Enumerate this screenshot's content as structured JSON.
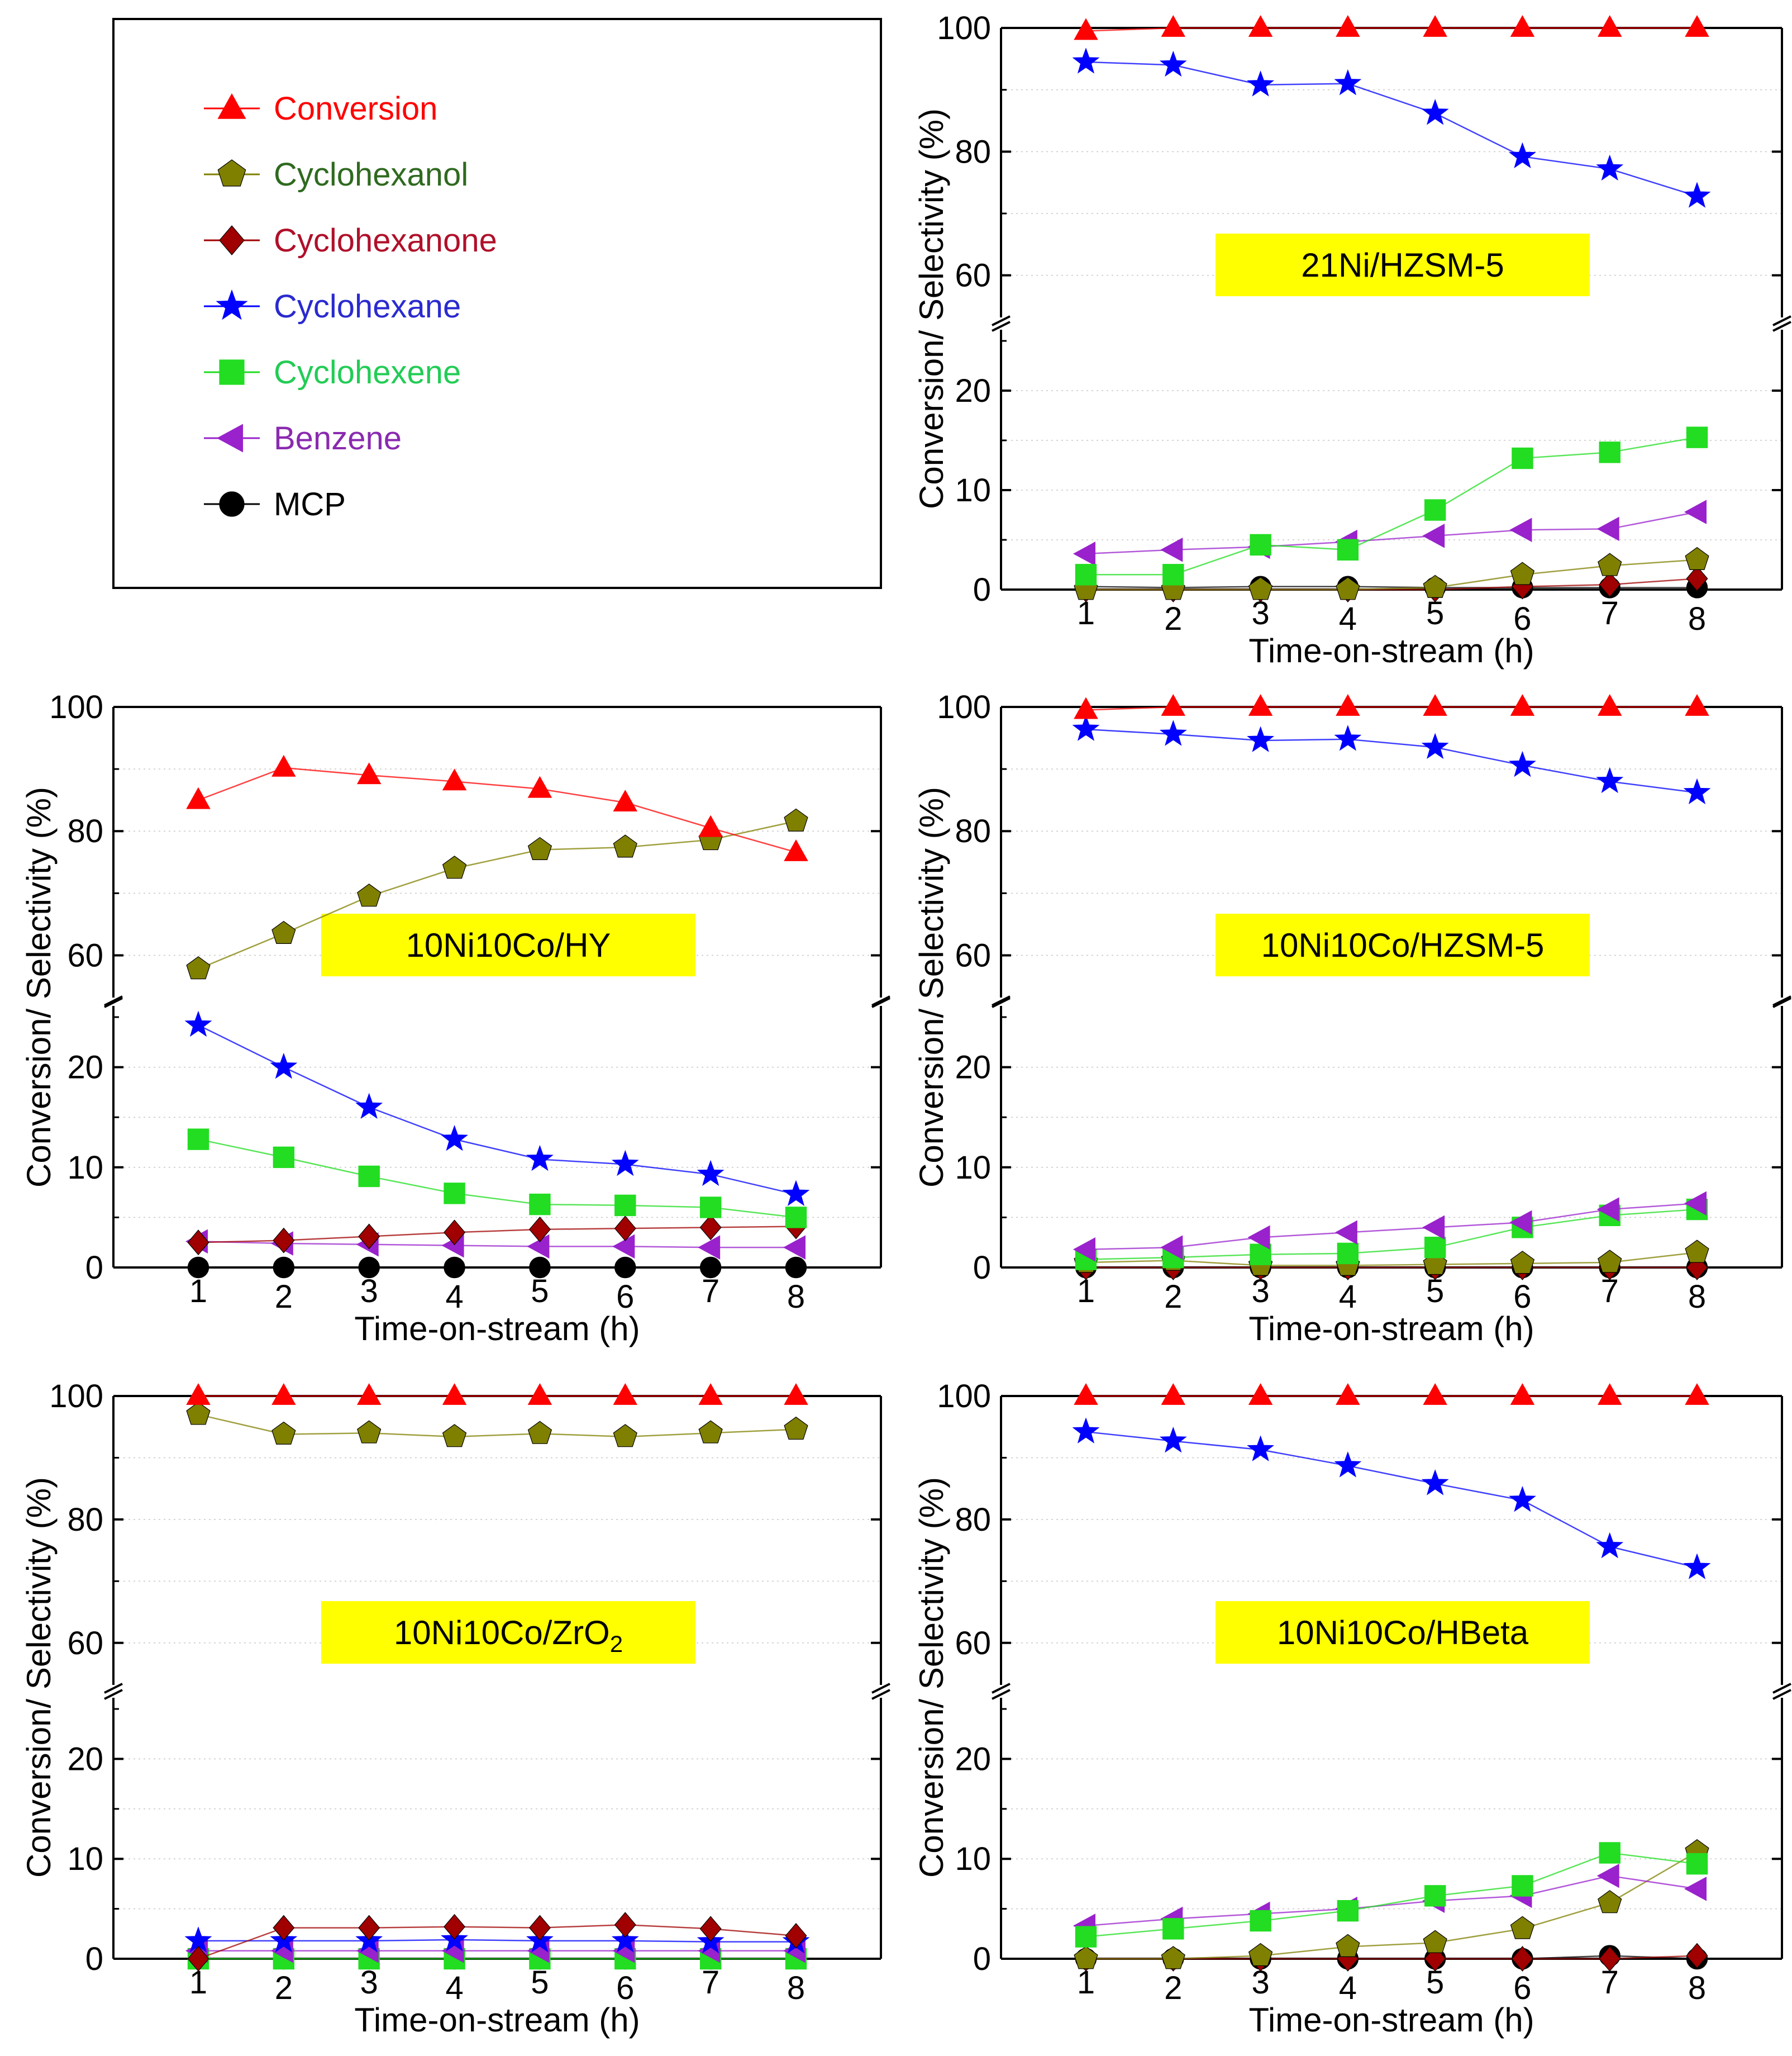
{
  "figure": {
    "x_label": "Time-on-stream (h)",
    "y_label": "Conversion/ Selectivity (%)"
  },
  "colors": {
    "conversion": "#ff0000",
    "cyclohexanol": "#808000",
    "cyclohexanone": "#a00000",
    "cyclohexane": "#0000ff",
    "cyclohexene": "#22dd22",
    "benzene": "#9922cc",
    "mcp": "#000000",
    "highlight": "#ffff00"
  },
  "legend": {
    "items": [
      {
        "key": "conversion",
        "label": "Conversion",
        "marker": "triangle-up",
        "text_color": "#ff0000"
      },
      {
        "key": "cyclohexanol",
        "label": "Cyclohexanol",
        "marker": "pentagon",
        "text_color": "#2f6a1f"
      },
      {
        "key": "cyclohexanone",
        "label": "Cyclohexanone",
        "marker": "diamond",
        "text_color": "#b0102a"
      },
      {
        "key": "cyclohexane",
        "label": "Cyclohexane",
        "marker": "star",
        "text_color": "#2a2ad0"
      },
      {
        "key": "cyclohexene",
        "label": "Cyclohexene",
        "marker": "square",
        "text_color": "#22cc55"
      },
      {
        "key": "benzene",
        "label": "Benzene",
        "marker": "triangle-left",
        "text_color": "#8a2ab0"
      },
      {
        "key": "mcp",
        "label": "MCP",
        "marker": "circle",
        "text_color": "#000000"
      }
    ]
  },
  "chart_data": [
    {
      "type": "line",
      "title": "21Ni/HZSM-5",
      "xlabel": "Time-on-stream (h)",
      "ylabel": "Conversion/ Selectivity (%)",
      "x": [
        1,
        2,
        3,
        4,
        5,
        6,
        7,
        8
      ],
      "ylim": [
        0,
        25
      ],
      "ylim_upper": [
        55,
        100
      ],
      "yticks_lower": [
        0,
        10,
        20
      ],
      "yticks_upper": [
        60,
        80,
        100
      ],
      "show_x_axis": true,
      "series": [
        {
          "key": "conversion",
          "name": "Conversion",
          "values": [
            99.5,
            100,
            100,
            100,
            100,
            100,
            100,
            100
          ]
        },
        {
          "key": "cyclohexane",
          "name": "Cyclohexane",
          "values": [
            94.5,
            94,
            90.8,
            91,
            86.2,
            79.2,
            77.2,
            72.8
          ]
        },
        {
          "key": "cyclohexene",
          "name": "Cyclohexene",
          "values": [
            1.5,
            1.5,
            4.5,
            4.0,
            8.0,
            13.2,
            13.8,
            15.3
          ]
        },
        {
          "key": "benzene",
          "name": "Benzene",
          "values": [
            3.6,
            4.0,
            4.3,
            4.8,
            5.4,
            6.0,
            6.1,
            7.8
          ]
        },
        {
          "key": "cyclohexanol",
          "name": "Cyclohexanol",
          "values": [
            0,
            0,
            0,
            0,
            0.2,
            1.5,
            2.4,
            3.0
          ]
        },
        {
          "key": "cyclohexanone",
          "name": "Cyclohexanone",
          "values": [
            0,
            0,
            0,
            0,
            0,
            0.3,
            0.5,
            1.1
          ]
        },
        {
          "key": "mcp",
          "name": "MCP",
          "values": [
            0.3,
            0.2,
            0.3,
            0.3,
            0.2,
            0.2,
            0.2,
            0.2
          ]
        }
      ]
    },
    {
      "type": "line",
      "title": "10Ni10Co/HY",
      "xlabel": "Time-on-stream (h)",
      "ylabel": "Conversion/ Selectivity (%)",
      "x": [
        1,
        2,
        3,
        4,
        5,
        6,
        7,
        8
      ],
      "ylim": [
        0,
        25
      ],
      "ylim_upper": [
        55,
        100
      ],
      "yticks_lower": [
        0,
        10,
        20
      ],
      "yticks_upper": [
        60,
        80,
        100
      ],
      "show_x_axis": true,
      "series": [
        {
          "key": "conversion",
          "name": "Conversion",
          "values": [
            85,
            90.2,
            89,
            88,
            86.8,
            84.6,
            80.5,
            76.6
          ]
        },
        {
          "key": "cyclohexanol",
          "name": "Cyclohexanol",
          "values": [
            57.8,
            63.5,
            69.5,
            74,
            77,
            77.4,
            78.6,
            81.6
          ]
        },
        {
          "key": "cyclohexane",
          "name": "Cyclohexane",
          "values": [
            24.2,
            20,
            16,
            12.8,
            10.8,
            10.3,
            9.3,
            7.3
          ]
        },
        {
          "key": "cyclohexene",
          "name": "Cyclohexene",
          "values": [
            12.8,
            11,
            9.1,
            7.4,
            6.3,
            6.2,
            6.0,
            5.0
          ]
        },
        {
          "key": "cyclohexanone",
          "name": "Cyclohexanone",
          "values": [
            2.5,
            2.7,
            3.1,
            3.5,
            3.8,
            3.9,
            4.0,
            4.1
          ]
        },
        {
          "key": "benzene",
          "name": "Benzene",
          "values": [
            2.6,
            2.4,
            2.3,
            2.2,
            2.1,
            2.1,
            2.0,
            2.0
          ]
        },
        {
          "key": "mcp",
          "name": "MCP",
          "values": [
            0,
            0,
            0,
            0,
            0,
            0,
            0,
            0
          ]
        }
      ]
    },
    {
      "type": "line",
      "title": "10Ni10Co/HZSM-5",
      "xlabel": "Time-on-stream (h)",
      "ylabel": "Conversion/ Selectivity (%)",
      "x": [
        1,
        2,
        3,
        4,
        5,
        6,
        7,
        8
      ],
      "ylim": [
        0,
        25
      ],
      "ylim_upper": [
        55,
        100
      ],
      "yticks_lower": [
        0,
        10,
        20
      ],
      "yticks_upper": [
        60,
        80,
        100
      ],
      "show_x_axis": true,
      "series": [
        {
          "key": "conversion",
          "name": "Conversion",
          "values": [
            99.5,
            100,
            100,
            100,
            100,
            100,
            100,
            100
          ]
        },
        {
          "key": "cyclohexane",
          "name": "Cyclohexane",
          "values": [
            96.4,
            95.6,
            94.6,
            94.8,
            93.5,
            90.6,
            88.0,
            86.2
          ]
        },
        {
          "key": "benzene",
          "name": "Benzene",
          "values": [
            1.8,
            2.0,
            3.0,
            3.5,
            4.0,
            4.5,
            5.8,
            6.4
          ]
        },
        {
          "key": "cyclohexene",
          "name": "Cyclohexene",
          "values": [
            0.8,
            1.0,
            1.3,
            1.4,
            2.0,
            4.0,
            5.2,
            5.8
          ]
        },
        {
          "key": "cyclohexanol",
          "name": "Cyclohexanol",
          "values": [
            0.5,
            0.7,
            0.2,
            0.2,
            0.3,
            0.4,
            0.5,
            1.5
          ]
        },
        {
          "key": "cyclohexanone",
          "name": "Cyclohexanone",
          "values": [
            0,
            0,
            0,
            0,
            0,
            0,
            0,
            0
          ]
        },
        {
          "key": "mcp",
          "name": "MCP",
          "values": [
            0,
            0,
            0,
            0,
            0,
            0,
            0,
            0
          ]
        }
      ]
    },
    {
      "type": "line",
      "title": "10Ni10Co/ZrO",
      "title_subscript": "2",
      "xlabel": "Time-on-stream (h)",
      "ylabel": "Conversion/ Selectivity (%)",
      "x": [
        1,
        2,
        3,
        4,
        5,
        6,
        7,
        8
      ],
      "ylim": [
        0,
        25
      ],
      "ylim_upper": [
        55,
        100
      ],
      "yticks_lower": [
        0,
        10,
        20
      ],
      "yticks_upper": [
        60,
        80,
        100
      ],
      "show_x_axis": true,
      "series": [
        {
          "key": "conversion",
          "name": "Conversion",
          "values": [
            100,
            100,
            100,
            100,
            100,
            100,
            100,
            100
          ]
        },
        {
          "key": "cyclohexanol",
          "name": "Cyclohexanol",
          "values": [
            97,
            93.8,
            94,
            93.4,
            93.9,
            93.4,
            94,
            94.6
          ]
        },
        {
          "key": "cyclohexanone",
          "name": "Cyclohexanone",
          "values": [
            0,
            3.1,
            3.1,
            3.2,
            3.1,
            3.4,
            3.0,
            2.3
          ]
        },
        {
          "key": "cyclohexane",
          "name": "Cyclohexane",
          "values": [
            1.8,
            1.8,
            1.8,
            1.9,
            1.8,
            1.8,
            1.7,
            1.7
          ]
        },
        {
          "key": "benzene",
          "name": "Benzene",
          "values": [
            0.8,
            0.8,
            0.8,
            0.8,
            0.8,
            0.8,
            0.8,
            0.8
          ]
        },
        {
          "key": "cyclohexene",
          "name": "Cyclohexene",
          "values": [
            0,
            0,
            0,
            0,
            0,
            0,
            0,
            0
          ]
        },
        {
          "key": "mcp",
          "name": "MCP",
          "values": [
            0,
            0,
            0,
            0,
            0,
            0,
            0,
            0
          ]
        }
      ]
    },
    {
      "type": "line",
      "title": "10Ni10Co/HBeta",
      "xlabel": "Time-on-stream (h)",
      "ylabel": "Conversion/ Selectivity (%)",
      "x": [
        1,
        2,
        3,
        4,
        5,
        6,
        7,
        8
      ],
      "ylim": [
        0,
        25
      ],
      "ylim_upper": [
        55,
        100
      ],
      "yticks_lower": [
        0,
        10,
        20
      ],
      "yticks_upper": [
        60,
        80,
        100
      ],
      "show_x_axis": true,
      "series": [
        {
          "key": "conversion",
          "name": "Conversion",
          "values": [
            100,
            100,
            100,
            100,
            100,
            100,
            100,
            100
          ]
        },
        {
          "key": "cyclohexane",
          "name": "Cyclohexane",
          "values": [
            94.2,
            92.7,
            91.3,
            88.7,
            85.8,
            83.1,
            75.6,
            72.2
          ]
        },
        {
          "key": "cyclohexene",
          "name": "Cyclohexene",
          "values": [
            2.2,
            3.0,
            3.8,
            4.8,
            6.3,
            7.3,
            10.6,
            9.5
          ]
        },
        {
          "key": "benzene",
          "name": "Benzene",
          "values": [
            3.3,
            4.0,
            4.5,
            5.0,
            5.8,
            6.3,
            8.3,
            7.0
          ]
        },
        {
          "key": "cyclohexanol",
          "name": "Cyclohexanol",
          "values": [
            0,
            0,
            0.3,
            1.2,
            1.6,
            3.0,
            5.6,
            10.7
          ]
        },
        {
          "key": "cyclohexanone",
          "name": "Cyclohexanone",
          "values": [
            0,
            0,
            0,
            0,
            0,
            0,
            0,
            0.3
          ]
        },
        {
          "key": "mcp",
          "name": "MCP",
          "values": [
            0,
            0,
            0,
            0,
            0,
            0,
            0.3,
            0
          ]
        }
      ]
    }
  ]
}
